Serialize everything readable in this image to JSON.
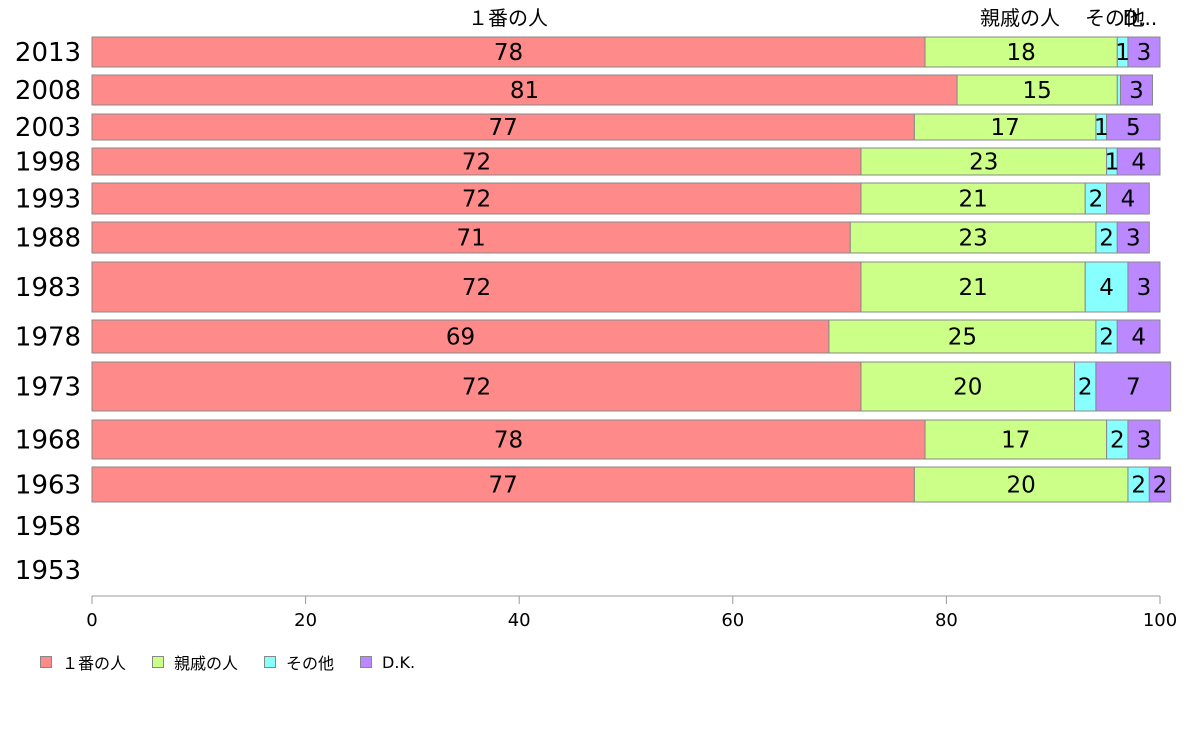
{
  "chart_data": {
    "type": "bar",
    "orientation": "horizontal",
    "stacked": true,
    "categories": [
      "2013",
      "2008",
      "2003",
      "1998",
      "1993",
      "1988",
      "1983",
      "1978",
      "1973",
      "1968",
      "1963",
      "1958",
      "1953"
    ],
    "series": [
      {
        "name": "１番の人",
        "color": "#ff8a8a",
        "values": [
          78,
          81,
          77,
          72,
          72,
          71,
          72,
          69,
          72,
          78,
          77,
          null,
          null
        ]
      },
      {
        "name": "親戚の人",
        "color": "#ccff88",
        "values": [
          18,
          15,
          17,
          23,
          21,
          23,
          21,
          25,
          20,
          17,
          20,
          null,
          null
        ]
      },
      {
        "name": "その他",
        "color": "#88ffff",
        "values": [
          1,
          0.3,
          1,
          1,
          2,
          2,
          4,
          2,
          2,
          2,
          2,
          null,
          null
        ]
      },
      {
        "name": "D.K.",
        "color": "#bb88ff",
        "values": [
          3,
          3,
          5,
          4,
          4,
          3,
          3,
          4,
          7,
          3,
          2,
          null,
          null
        ]
      }
    ],
    "segment_labels": [
      [
        "78",
        "18",
        "1",
        "3"
      ],
      [
        "81",
        "15",
        "",
        "3"
      ],
      [
        "77",
        "17",
        "1",
        "5"
      ],
      [
        "72",
        "23",
        "1",
        "4"
      ],
      [
        "72",
        "21",
        "2",
        "4"
      ],
      [
        "71",
        "23",
        "2",
        "3"
      ],
      [
        "72",
        "21",
        "4",
        "3"
      ],
      [
        "69",
        "25",
        "2",
        "4"
      ],
      [
        "72",
        "20",
        "2",
        "7"
      ],
      [
        "78",
        "17",
        "2",
        "3"
      ],
      [
        "77",
        "20",
        "2",
        "2"
      ]
    ],
    "column_headers": [
      "１番の人",
      "親戚の人",
      "その他",
      "D..."
    ],
    "xlim": [
      0,
      100
    ],
    "xticks": [
      "0",
      "20",
      "40",
      "60",
      "80",
      "100"
    ],
    "grid": false,
    "legend_position": "bottom-left",
    "title": "",
    "xlabel": "",
    "ylabel": ""
  }
}
